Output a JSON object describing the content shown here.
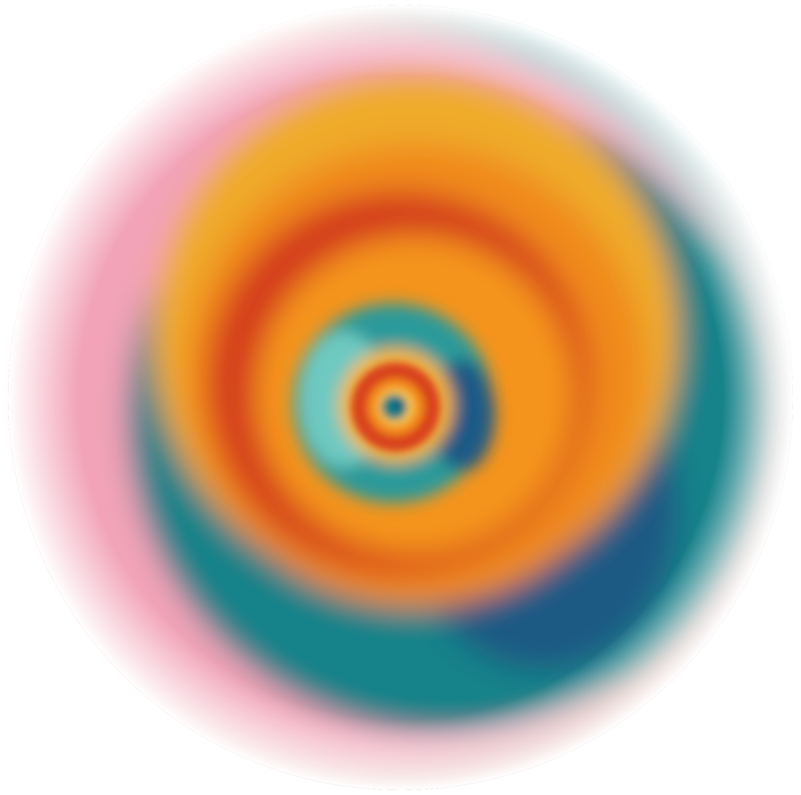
{
  "artwork": {
    "kind": "blurred-concentric-color-rings",
    "background_color": "#ffffff",
    "ring_colors": [
      "#168a94",
      "#f6a623",
      "#d63a1f",
      "#f08a1e",
      "#2a9a9a",
      "#6ec9c1",
      "#f3b53a",
      "#d8431f",
      "#f28a1c",
      "#0d7f86",
      "#1c5a86",
      "#e9657a",
      "#f3a4c2"
    ],
    "outer_tints": {
      "left": "#f3a2c8",
      "top_right": "#0f7f88",
      "bottom": "#e07a6a"
    }
  }
}
